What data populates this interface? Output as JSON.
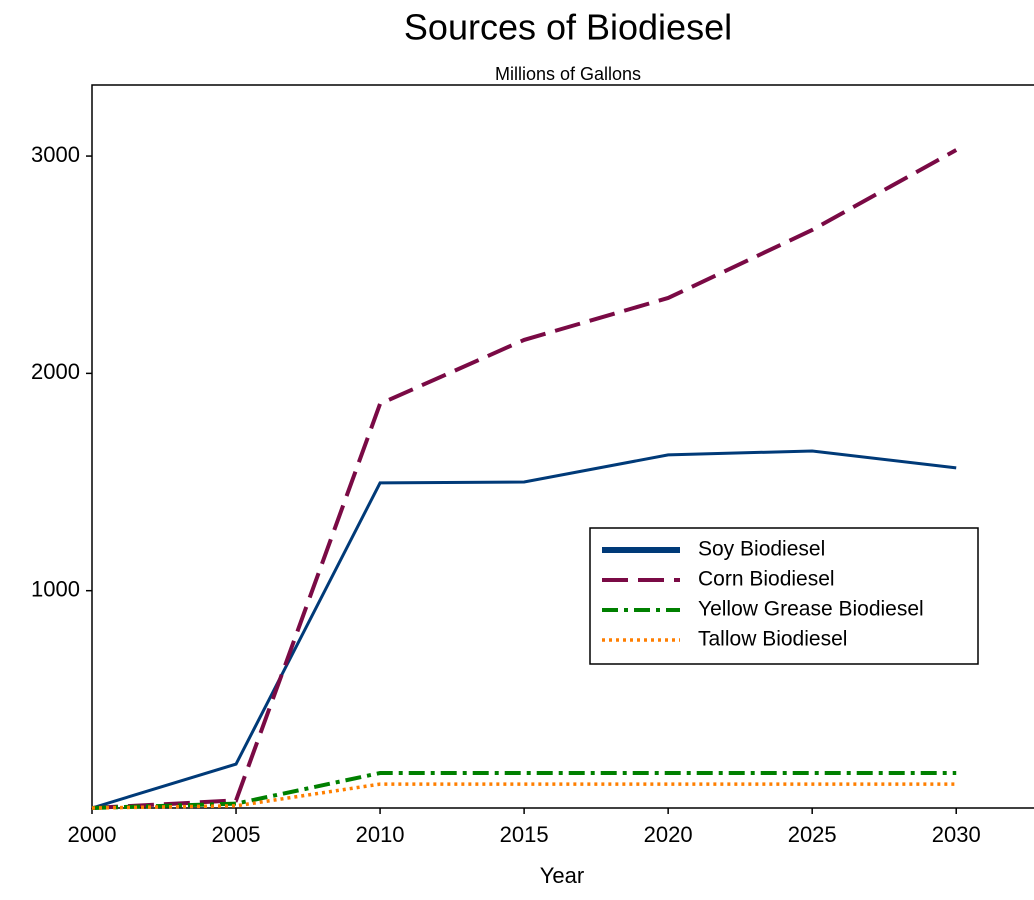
{
  "chart_data": {
    "type": "line",
    "title": "Sources of Biodiesel",
    "subtitle": "Millions of Gallons",
    "xlabel": "Year",
    "x": [
      2000,
      2005,
      2010,
      2015,
      2020,
      2025,
      2030
    ],
    "series": [
      {
        "name": "Soy Biodiesel",
        "color": "#003a78",
        "dash": "solid",
        "values": [
          0,
          202,
          1496,
          1500,
          1625,
          1643,
          1565
        ]
      },
      {
        "name": "Corn Biodiesel",
        "color": "#7a0a45",
        "dash": "long-dash",
        "values": [
          0,
          35,
          1860,
          2154,
          2347,
          2660,
          3028
        ]
      },
      {
        "name": "Yellow Grease Biodiesel",
        "color": "#008000",
        "dash": "dash-dot",
        "values": [
          0,
          20,
          161,
          161,
          161,
          161,
          161
        ]
      },
      {
        "name": "Tallow Biodiesel",
        "color": "#ff7f00",
        "dash": "dot",
        "values": [
          0,
          10,
          110,
          110,
          110,
          110,
          110
        ]
      }
    ],
    "xlim": [
      2000,
      2032.7
    ],
    "xticks": [
      2000,
      2005,
      2010,
      2015,
      2020,
      2025,
      2030
    ],
    "ylim": [
      0,
      3327
    ],
    "yticks": [
      1000,
      2000,
      3000
    ],
    "legend": "center-right"
  }
}
